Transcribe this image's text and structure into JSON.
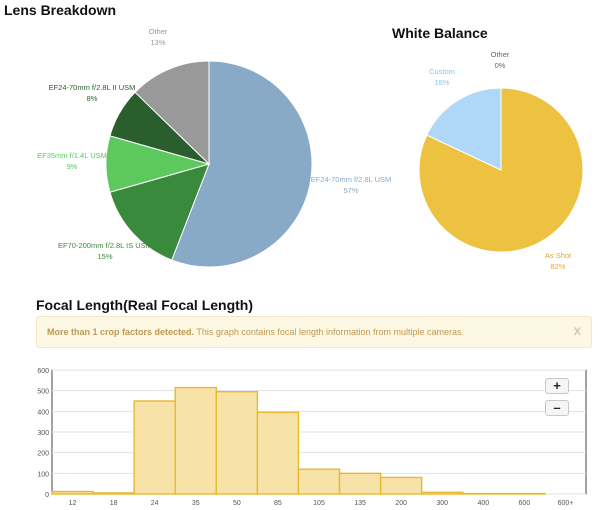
{
  "lens_breakdown": {
    "title": "Lens Breakdown",
    "labels": {
      "other": {
        "name": "Other",
        "percent": "13%"
      },
      "ef24_70_ii": {
        "name": "EF24-70mm f/2.8L II USM",
        "percent": "8%"
      },
      "ef35": {
        "name": "EF35mm f/1.4L USM",
        "percent": "9%"
      },
      "ef70_200": {
        "name": "EF70-200mm f/2.8L IS USM",
        "percent": "15%"
      },
      "ef24_70": {
        "name": "EF24-70mm f/2.8L USM",
        "percent": "57%"
      }
    }
  },
  "white_balance": {
    "title": "White Balance",
    "labels": {
      "other": {
        "name": "Other",
        "percent": "0%"
      },
      "custom": {
        "name": "Custom",
        "percent": "18%"
      },
      "as_shot": {
        "name": "As Shot",
        "percent": "82%"
      }
    }
  },
  "focal_length": {
    "title": "Focal Length(Real Focal Length)",
    "alert": {
      "strong": "More than 1 crop factors detected.",
      "message": " This graph contains focal length information from multiple cameras.",
      "close": "X"
    },
    "zoom_in": "+",
    "zoom_out": "–"
  },
  "colors": {
    "lens_ef24_70": "#88aac6",
    "lens_ef70_200": "#3a8a3e",
    "lens_ef35": "#5cc85e",
    "lens_ef24_70_ii": "#2a5e2c",
    "lens_other": "#999999",
    "wb_as_shot": "#edc240",
    "wb_custom": "#afd8f8",
    "bar_fill": "#f7e3a8",
    "bar_stroke": "#e8b830"
  },
  "chart_data": [
    {
      "type": "pie",
      "title": "Lens Breakdown",
      "slices": [
        {
          "label": "EF24-70mm f/2.8L USM",
          "value": 57
        },
        {
          "label": "EF70-200mm f/2.8L IS USM",
          "value": 15
        },
        {
          "label": "EF35mm f/1.4L USM",
          "value": 9
        },
        {
          "label": "EF24-70mm f/2.8L II USM",
          "value": 8
        },
        {
          "label": "Other",
          "value": 13
        }
      ]
    },
    {
      "type": "pie",
      "title": "White Balance",
      "slices": [
        {
          "label": "As Shot",
          "value": 82
        },
        {
          "label": "Custom",
          "value": 18
        },
        {
          "label": "Other",
          "value": 0
        }
      ]
    },
    {
      "type": "bar",
      "title": "Focal Length(Real Focal Length)",
      "ylim": [
        0,
        600
      ],
      "yticks": [
        0,
        100,
        200,
        300,
        400,
        500,
        600
      ],
      "categories": [
        "12",
        "18",
        "24",
        "35",
        "50",
        "85",
        "105",
        "135",
        "200",
        "300",
        "400",
        "600",
        "600+"
      ],
      "values": [
        12,
        5,
        450,
        515,
        495,
        395,
        120,
        100,
        80,
        8,
        2,
        2,
        0
      ],
      "grid": true
    }
  ]
}
